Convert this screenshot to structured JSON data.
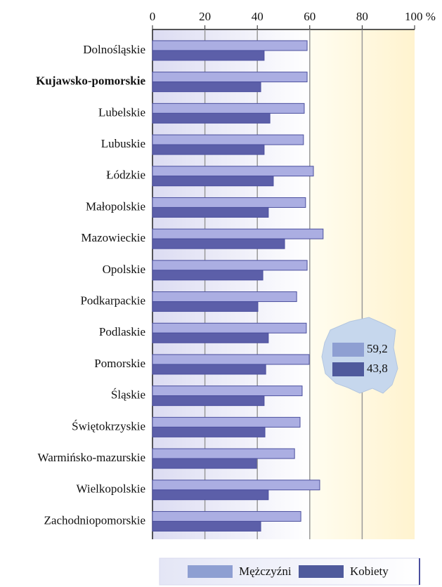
{
  "chart_data": {
    "type": "hbar",
    "categories": [
      "Dolnośląskie",
      "Kujawsko-pomorskie",
      "Lubelskie",
      "Lubuskie",
      "Łódzkie",
      "Małopolskie",
      "Mazowieckie",
      "Opolskie",
      "Podkarpackie",
      "Podlaskie",
      "Pomorskie",
      "Śląskie",
      "Świętokrzyskie",
      "Warmińsko-mazurskie",
      "Wielkopolskie",
      "Zachodniopomorskie"
    ],
    "highlight_index": 1,
    "series": [
      {
        "name": "Mężczyźni",
        "color": "#abaee2",
        "legend_color": "#8e9fd2",
        "values": [
          59.0,
          59.0,
          57.9,
          57.6,
          61.4,
          58.4,
          65.1,
          59.0,
          55.0,
          58.7,
          59.8,
          57.1,
          56.3,
          54.2,
          63.8,
          56.6
        ]
      },
      {
        "name": "Kobiety",
        "color": "#5c5fa9",
        "legend_color": "#4f5a9c",
        "values": [
          42.6,
          41.3,
          44.8,
          42.6,
          46.1,
          44.2,
          50.4,
          42.1,
          40.2,
          44.2,
          43.2,
          42.6,
          42.9,
          39.7,
          44.2,
          41.3
        ]
      }
    ],
    "inset": {
      "values": [
        59.2,
        43.8
      ],
      "value_labels": [
        "59,2",
        "43,8"
      ]
    },
    "xlim": [
      0,
      100
    ],
    "xticks": [
      0,
      20,
      40,
      60,
      80,
      {
        "value": 100,
        "label": "100 %"
      }
    ],
    "grid": true
  }
}
